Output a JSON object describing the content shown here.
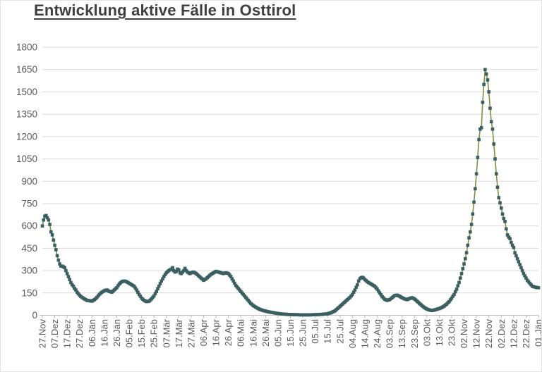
{
  "title": "Entwicklung aktive Fälle in Osttirol",
  "chart_data": {
    "type": "line",
    "title": "Entwicklung aktive Fälle in Osttirol",
    "series_name": "aktive Fälle",
    "legend": "none",
    "grid": "horizontal-only",
    "marker": "square",
    "line_color": "#7e9143",
    "marker_color": "#3a5f60",
    "grid_color": "#d9d9d9",
    "axis_color": "#bfbfbf",
    "label_color": "#595959",
    "ylim": [
      0,
      1800
    ],
    "y_ticks": [
      0,
      150,
      300,
      450,
      600,
      750,
      900,
      1050,
      1200,
      1350,
      1500,
      1650,
      1800
    ],
    "points_per_tick": 10,
    "x_tick_labels": [
      "27.Nov",
      "07.Dez",
      "17.Dez",
      "27.Dez",
      "06.Jän",
      "16.Jän",
      "26.Jän",
      "05.Feb",
      "15.Feb",
      "25.Feb",
      "07.Mär",
      "17.Mär",
      "27.Mär",
      "06.Apr",
      "16.Apr",
      "26.Apr",
      "06.Mai",
      "16.Mai",
      "26.Mai",
      "05.Jun",
      "15.Jun",
      "25.Jun",
      "05.Jul",
      "15.Jul",
      "25.Jul",
      "04.Aug",
      "14.Aug",
      "24.Aug",
      "03.Sep",
      "13.Sep",
      "23.Sep",
      "03.Okt",
      "13.Okt",
      "23.Okt",
      "02.Nov",
      "12.Nov",
      "22.Nov",
      "02.Dez",
      "12.Dez",
      "22.Dez",
      "01.Jän"
    ],
    "values": [
      600,
      640,
      665,
      670,
      655,
      640,
      610,
      560,
      540,
      505,
      470,
      440,
      400,
      370,
      345,
      330,
      330,
      325,
      320,
      300,
      280,
      260,
      240,
      220,
      205,
      195,
      180,
      170,
      155,
      145,
      135,
      127,
      120,
      115,
      110,
      105,
      100,
      99,
      98,
      96,
      95,
      100,
      105,
      112,
      120,
      130,
      140,
      148,
      155,
      160,
      165,
      168,
      170,
      165,
      160,
      158,
      155,
      162,
      170,
      178,
      185,
      198,
      210,
      218,
      225,
      228,
      230,
      228,
      225,
      220,
      215,
      210,
      205,
      200,
      195,
      183,
      170,
      155,
      140,
      128,
      115,
      108,
      100,
      96,
      92,
      93,
      95,
      102,
      110,
      120,
      130,
      145,
      160,
      178,
      195,
      213,
      230,
      245,
      260,
      273,
      285,
      293,
      300,
      305,
      310,
      320,
      300,
      290,
      295,
      310,
      305,
      285,
      280,
      290,
      300,
      315,
      300,
      290,
      285,
      280,
      285,
      288,
      290,
      285,
      280,
      273,
      265,
      258,
      250,
      243,
      235,
      240,
      245,
      253,
      260,
      268,
      275,
      280,
      285,
      290,
      295,
      293,
      290,
      288,
      285,
      283,
      280,
      283,
      285,
      283,
      280,
      270,
      260,
      245,
      230,
      215,
      200,
      190,
      180,
      170,
      160,
      150,
      140,
      130,
      120,
      110,
      100,
      90,
      80,
      73,
      65,
      60,
      55,
      50,
      45,
      41,
      38,
      35,
      32,
      30,
      28,
      26,
      24,
      22,
      21,
      19,
      18,
      16,
      15,
      13,
      12,
      11,
      10,
      9,
      8,
      8,
      7,
      6,
      6,
      5,
      5,
      5,
      4,
      4,
      4,
      4,
      4,
      3,
      3,
      3,
      3,
      3,
      3,
      3,
      3,
      3,
      3,
      3,
      4,
      4,
      4,
      4,
      5,
      5,
      6,
      6,
      7,
      8,
      9,
      9,
      10,
      13,
      15,
      18,
      22,
      26,
      30,
      38,
      45,
      52,
      60,
      68,
      75,
      83,
      90,
      98,
      105,
      113,
      120,
      130,
      140,
      155,
      170,
      188,
      205,
      230,
      245,
      252,
      255,
      250,
      240,
      233,
      225,
      220,
      215,
      210,
      205,
      200,
      195,
      185,
      175,
      163,
      150,
      138,
      125,
      117,
      108,
      104,
      100,
      103,
      105,
      112,
      118,
      125,
      132,
      134,
      135,
      132,
      128,
      123,
      118,
      114,
      110,
      108,
      105,
      109,
      112,
      115,
      118,
      114,
      110,
      103,
      95,
      88,
      80,
      73,
      65,
      59,
      52,
      47,
      42,
      39,
      36,
      34,
      32,
      34,
      35,
      38,
      40,
      43,
      45,
      49,
      52,
      57,
      62,
      69,
      75,
      84,
      92,
      104,
      115,
      128,
      140,
      158,
      175,
      198,
      220,
      250,
      280,
      313,
      345,
      380,
      420,
      470,
      520,
      560,
      610,
      680,
      760,
      850,
      950,
      1060,
      1180,
      1250,
      1260,
      1430,
      1550,
      1650,
      1620,
      1580,
      1500,
      1390,
      1300,
      1250,
      1150,
      1050,
      950,
      860,
      790,
      755,
      720,
      680,
      650,
      630,
      580,
      540,
      525,
      515,
      490,
      470,
      455,
      420,
      400,
      380,
      360,
      340,
      320,
      300,
      280,
      265,
      250,
      235,
      225,
      215,
      205,
      195,
      192,
      190,
      188,
      186,
      185
    ]
  }
}
